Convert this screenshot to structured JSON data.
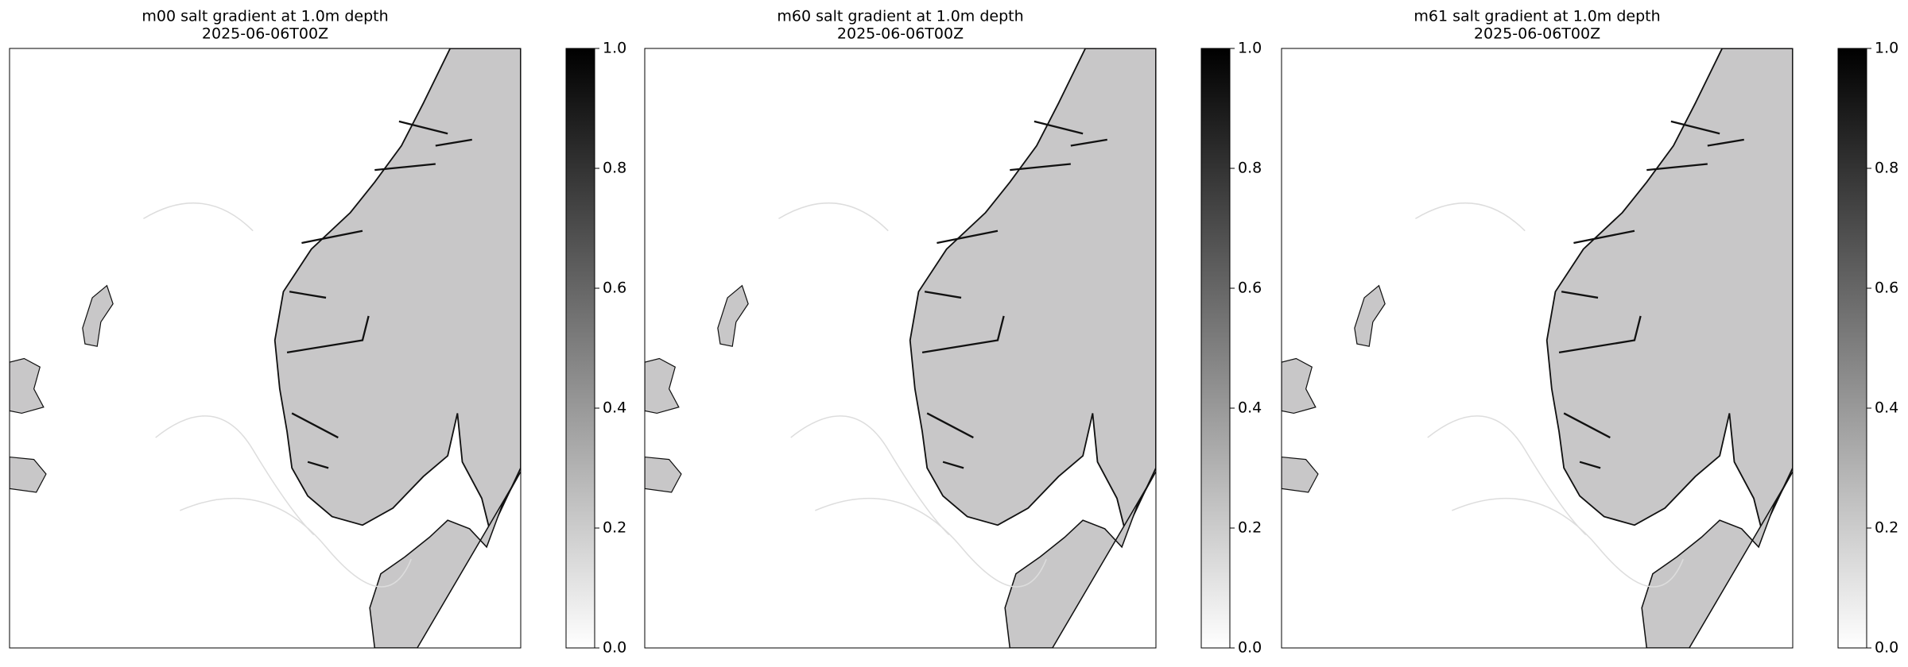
{
  "panels": [
    {
      "title": "m00 salt gradient at 1.0m depth",
      "subtitle": "2025-06-06T00Z",
      "colorbar": {
        "lim": [
          0,
          1
        ],
        "ticks": [
          {
            "value": 0,
            "label": "0.0"
          },
          0.2,
          0.4,
          0.6,
          0.8,
          {
            "value": 1,
            "label": "1.0"
          }
        ]
      }
    },
    {
      "title": "m60 salt gradient at 1.0m depth",
      "subtitle": "2025-06-06T00Z",
      "colorbar": {
        "lim": [
          0,
          1
        ],
        "ticks": [
          {
            "value": 0,
            "label": "0.0"
          },
          0.2,
          0.4,
          0.6,
          0.8,
          {
            "value": 1,
            "label": "1.0"
          }
        ]
      }
    },
    {
      "title": "m61 salt gradient at 1.0m depth",
      "subtitle": "2025-06-06T00Z",
      "colorbar": {
        "lim": [
          0,
          1
        ],
        "ticks": [
          {
            "value": 0,
            "label": "0.0"
          },
          0.2,
          0.4,
          0.6,
          0.8,
          {
            "value": 1,
            "label": "1.0"
          }
        ]
      }
    }
  ]
}
